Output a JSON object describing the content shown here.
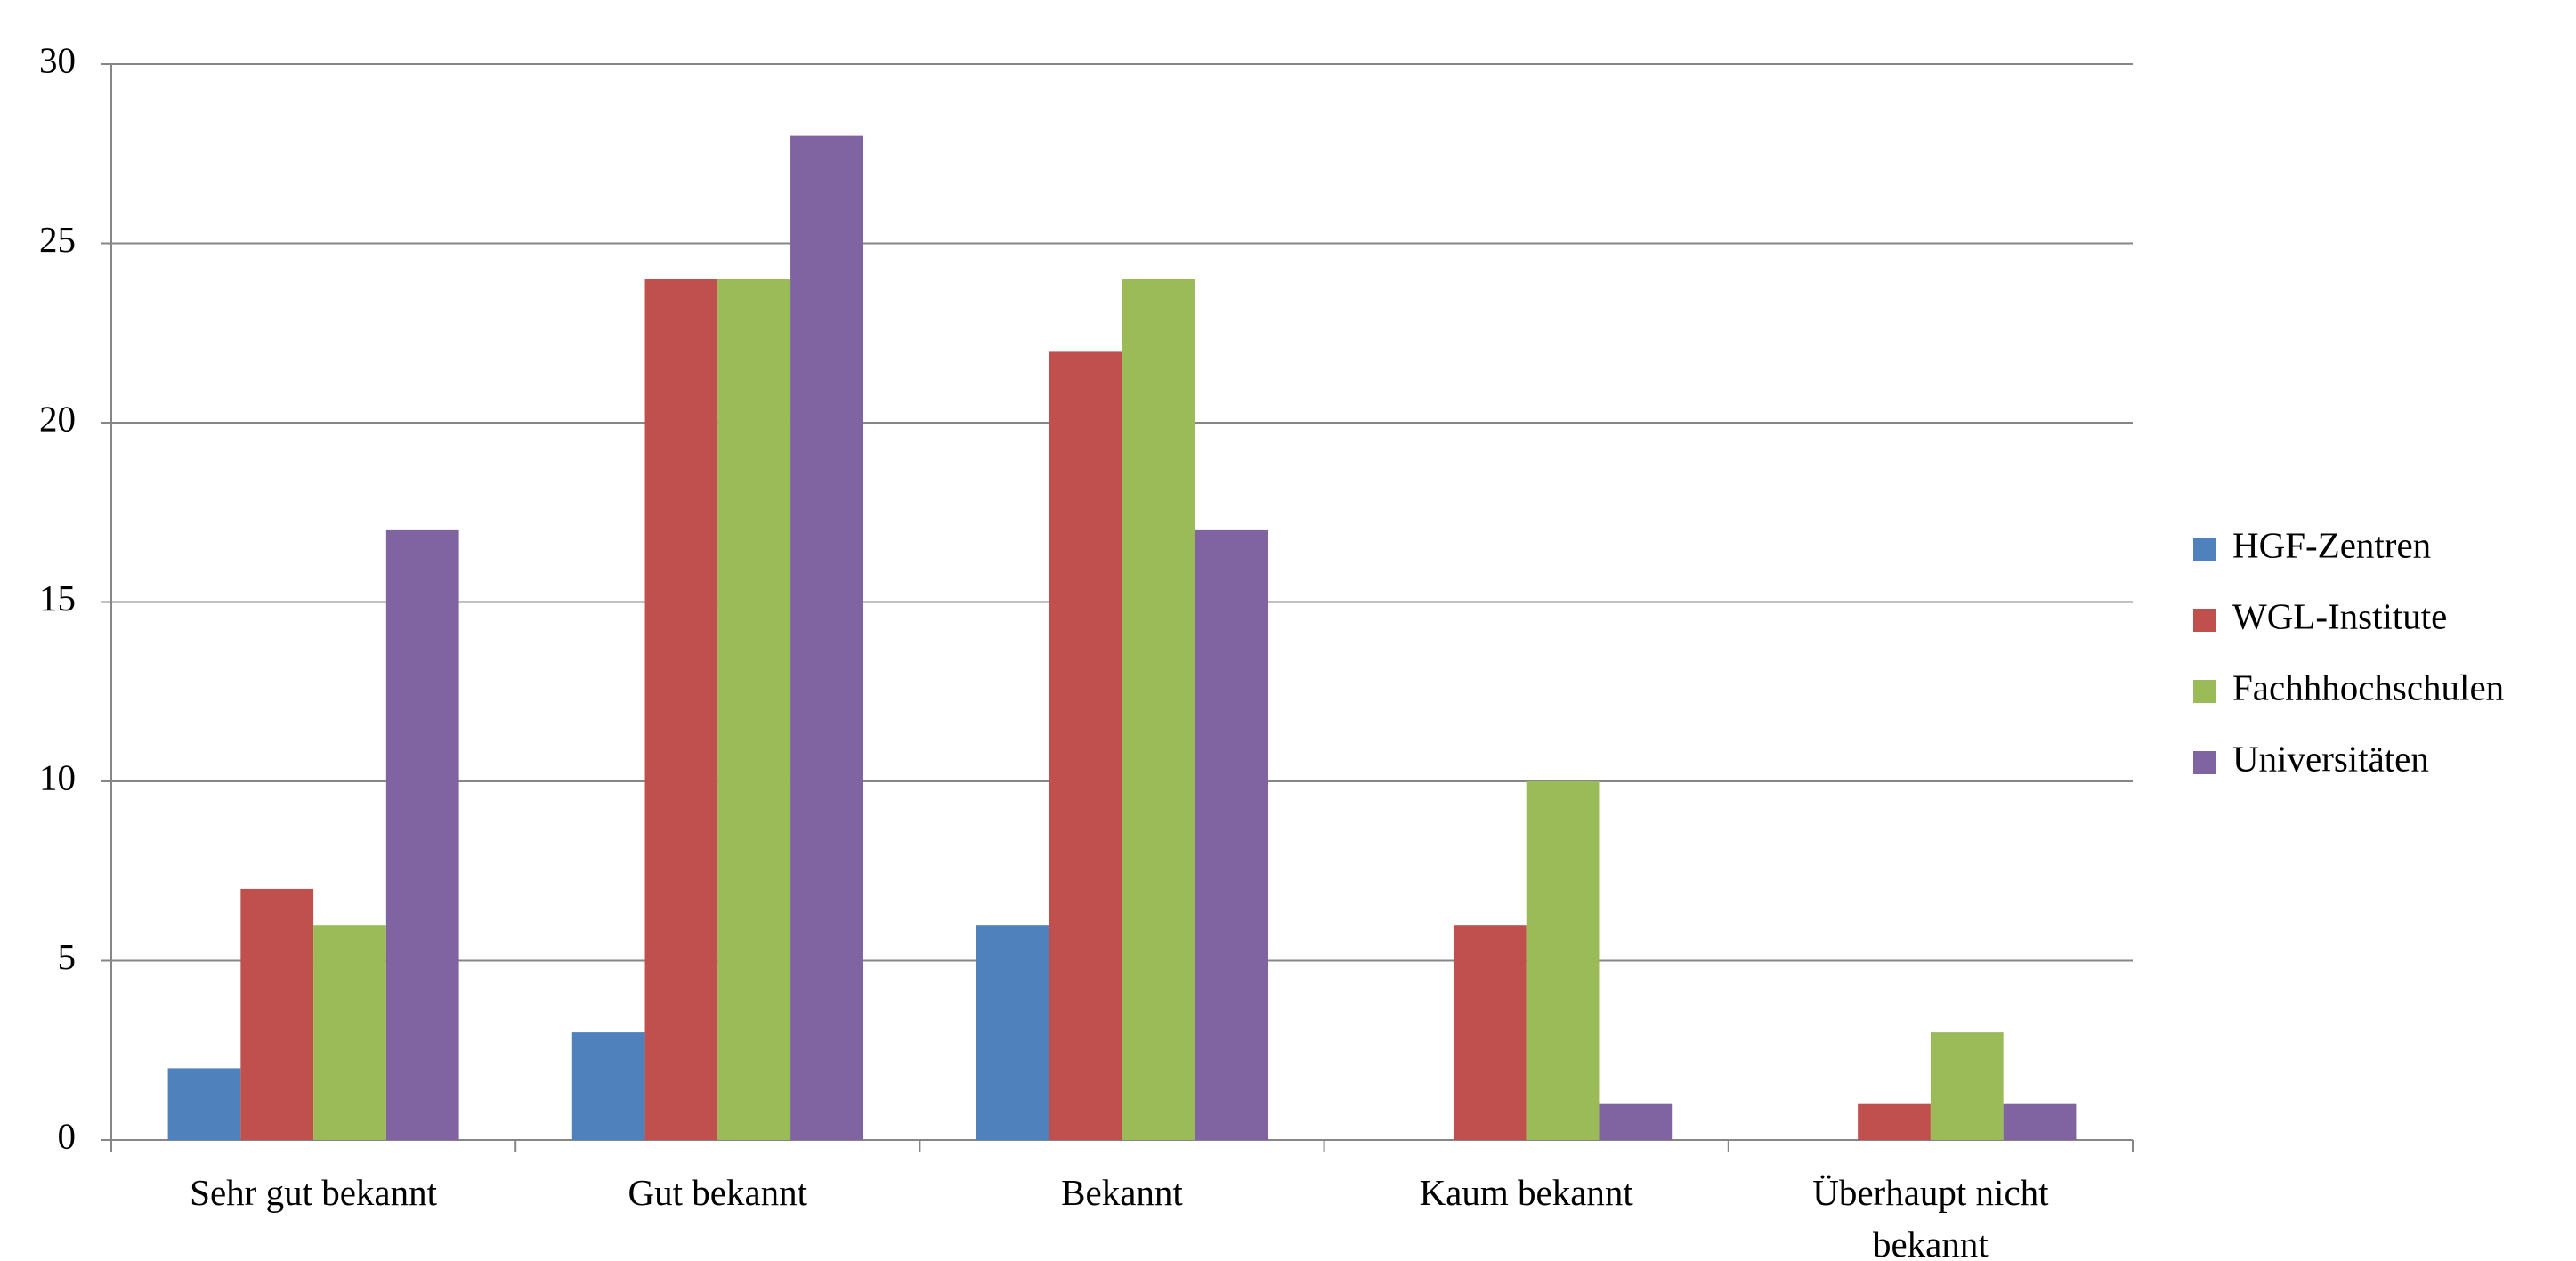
{
  "chart_data": {
    "type": "bar",
    "categories": [
      "Sehr gut bekannt",
      "Gut bekannt",
      "Bekannt",
      "Kaum bekannt",
      "Überhaupt nicht bekannt"
    ],
    "series": [
      {
        "name": "HGF-Zentren",
        "color": "#4f81bd",
        "values": [
          2,
          3,
          6,
          0,
          0
        ]
      },
      {
        "name": "WGL-Institute",
        "color": "#c0504d",
        "values": [
          7,
          24,
          22,
          6,
          1
        ]
      },
      {
        "name": "Fachhhochschulen",
        "color": "#9bbb59",
        "values": [
          6,
          24,
          24,
          10,
          3
        ]
      },
      {
        "name": "Universitäten",
        "color": "#8064a2",
        "values": [
          17,
          28,
          17,
          1,
          1
        ]
      }
    ],
    "ylim": [
      0,
      30
    ],
    "yticks": [
      0,
      5,
      10,
      15,
      20,
      25,
      30
    ],
    "grid": true,
    "legend": "right"
  }
}
